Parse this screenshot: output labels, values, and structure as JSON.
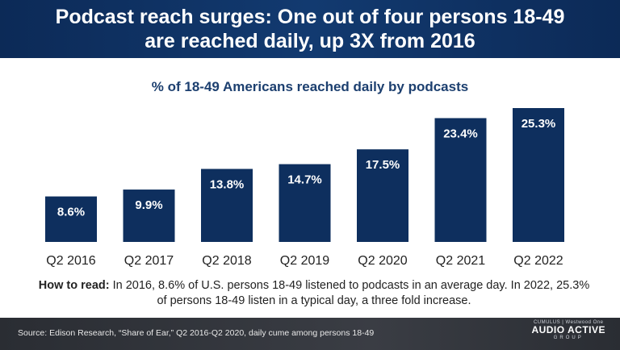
{
  "header": {
    "title_line1": "Podcast reach surges: One out of four persons 18-49",
    "title_line2": "are reached daily, up 3X from 2016"
  },
  "chart_data": {
    "type": "bar",
    "title": "% of 18-49 Americans reached daily by podcasts",
    "categories": [
      "Q2 2016",
      "Q2 2017",
      "Q2 2018",
      "Q2 2019",
      "Q2 2020",
      "Q2 2021",
      "Q2 2022"
    ],
    "values": [
      8.6,
      9.9,
      13.8,
      14.7,
      17.5,
      23.4,
      25.3
    ],
    "data_labels": [
      "8.6%",
      "9.9%",
      "13.8%",
      "14.7%",
      "17.5%",
      "23.4%",
      "25.3%"
    ],
    "ylim": [
      0,
      25.3
    ],
    "grid": false,
    "bar_color": "#0e2f5e"
  },
  "note": {
    "lead": "How to read:",
    "text": " In 2016, 8.6% of U.S. persons 18-49 listened to podcasts in an average day. In 2022, 25.3% of persons 18-49 listen in a typical day, a three fold increase."
  },
  "footer": {
    "source": "Source: Edison Research, “Share of Ear,” Q2 2016-Q2 2020, daily cume among persons 18-49",
    "logo_top": "CUMULUS | Westwood One",
    "logo_main": "AUDIO ACTIVE",
    "logo_sub": "GROUP"
  }
}
